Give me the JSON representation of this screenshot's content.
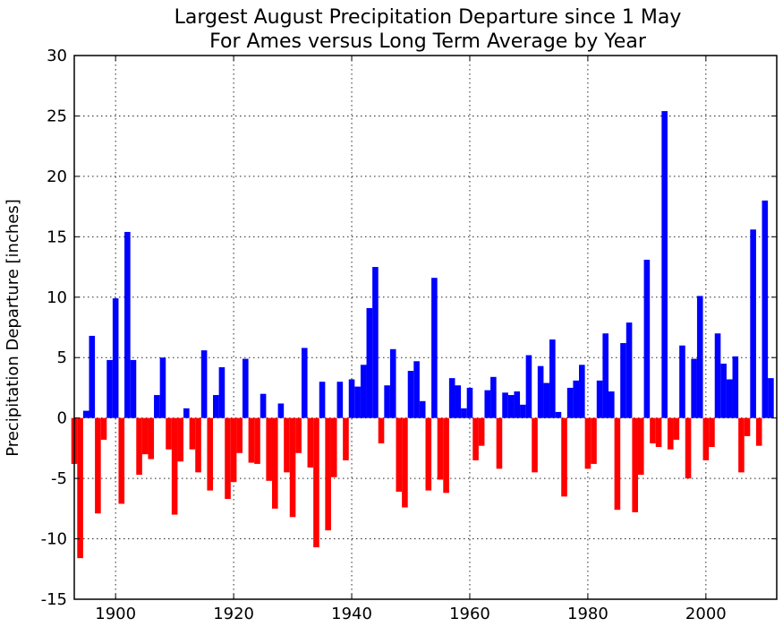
{
  "chart_data": {
    "type": "bar",
    "title": "Largest August Precipitation Departure since 1 May",
    "subtitle": "For Ames versus Long Term Average by Year",
    "xlabel": "",
    "ylabel": "Precipitation Departure [inches]",
    "xlim": [
      1893,
      2012
    ],
    "ylim": [
      -15,
      30
    ],
    "x_ticks": [
      1900,
      1920,
      1940,
      1960,
      1980,
      2000
    ],
    "y_ticks": [
      -15,
      -10,
      -5,
      0,
      5,
      10,
      15,
      20,
      25,
      30
    ],
    "grid": true,
    "colors": {
      "positive": "#0000ff",
      "negative": "#ff0000"
    },
    "x": [
      1893,
      1894,
      1895,
      1896,
      1897,
      1898,
      1899,
      1900,
      1901,
      1902,
      1903,
      1904,
      1905,
      1906,
      1907,
      1908,
      1909,
      1910,
      1911,
      1912,
      1913,
      1914,
      1915,
      1916,
      1917,
      1918,
      1919,
      1920,
      1921,
      1922,
      1923,
      1924,
      1925,
      1926,
      1927,
      1928,
      1929,
      1930,
      1931,
      1932,
      1933,
      1934,
      1935,
      1936,
      1937,
      1938,
      1939,
      1940,
      1941,
      1942,
      1943,
      1944,
      1945,
      1946,
      1947,
      1948,
      1949,
      1950,
      1951,
      1952,
      1953,
      1954,
      1955,
      1956,
      1957,
      1958,
      1959,
      1960,
      1961,
      1962,
      1963,
      1964,
      1965,
      1966,
      1967,
      1968,
      1969,
      1970,
      1971,
      1972,
      1973,
      1974,
      1975,
      1976,
      1977,
      1978,
      1979,
      1980,
      1981,
      1982,
      1983,
      1984,
      1985,
      1986,
      1987,
      1988,
      1989,
      1990,
      1991,
      1992,
      1993,
      1994,
      1995,
      1996,
      1997,
      1998,
      1999,
      2000,
      2001,
      2002,
      2003,
      2004,
      2005,
      2006,
      2007,
      2008,
      2009,
      2010,
      2011
    ],
    "series": [
      {
        "name": "",
        "values": [
          -3.8,
          -11.6,
          0.6,
          6.8,
          -7.9,
          -1.8,
          4.8,
          9.9,
          -7.1,
          15.4,
          4.8,
          -4.7,
          -3.0,
          -3.4,
          1.9,
          5.0,
          -2.6,
          -8.0,
          -3.6,
          0.8,
          -2.6,
          -4.5,
          5.6,
          -6.0,
          1.9,
          4.2,
          -6.7,
          -5.3,
          -2.9,
          4.9,
          -3.7,
          -3.8,
          2.0,
          -5.2,
          -7.5,
          1.2,
          -4.5,
          -8.2,
          -2.9,
          5.8,
          -4.1,
          -10.7,
          3.0,
          -9.3,
          -4.9,
          3.0,
          -3.5,
          3.2,
          2.6,
          4.4,
          9.1,
          12.5,
          -2.1,
          2.7,
          5.7,
          -6.1,
          -7.4,
          3.9,
          4.7,
          1.4,
          -6.0,
          11.6,
          -5.1,
          -6.2,
          3.3,
          2.7,
          0.8,
          2.5,
          -3.5,
          -2.3,
          2.3,
          3.4,
          -4.2,
          2.1,
          1.9,
          2.2,
          1.1,
          5.2,
          -4.5,
          4.3,
          2.9,
          6.5,
          0.5,
          -6.5,
          2.5,
          3.1,
          4.4,
          -4.2,
          -3.8,
          3.1,
          7.0,
          2.2,
          -7.6,
          6.2,
          7.9,
          -7.8,
          -4.7,
          13.1,
          -2.1,
          -2.4,
          25.4,
          -2.6,
          -1.8,
          6.0,
          -5.0,
          4.9,
          10.1,
          -3.5,
          -2.4,
          7.0,
          4.5,
          3.2,
          5.1,
          -4.5,
          -1.5,
          15.6,
          -2.3,
          18.0,
          3.3
        ]
      }
    ]
  }
}
